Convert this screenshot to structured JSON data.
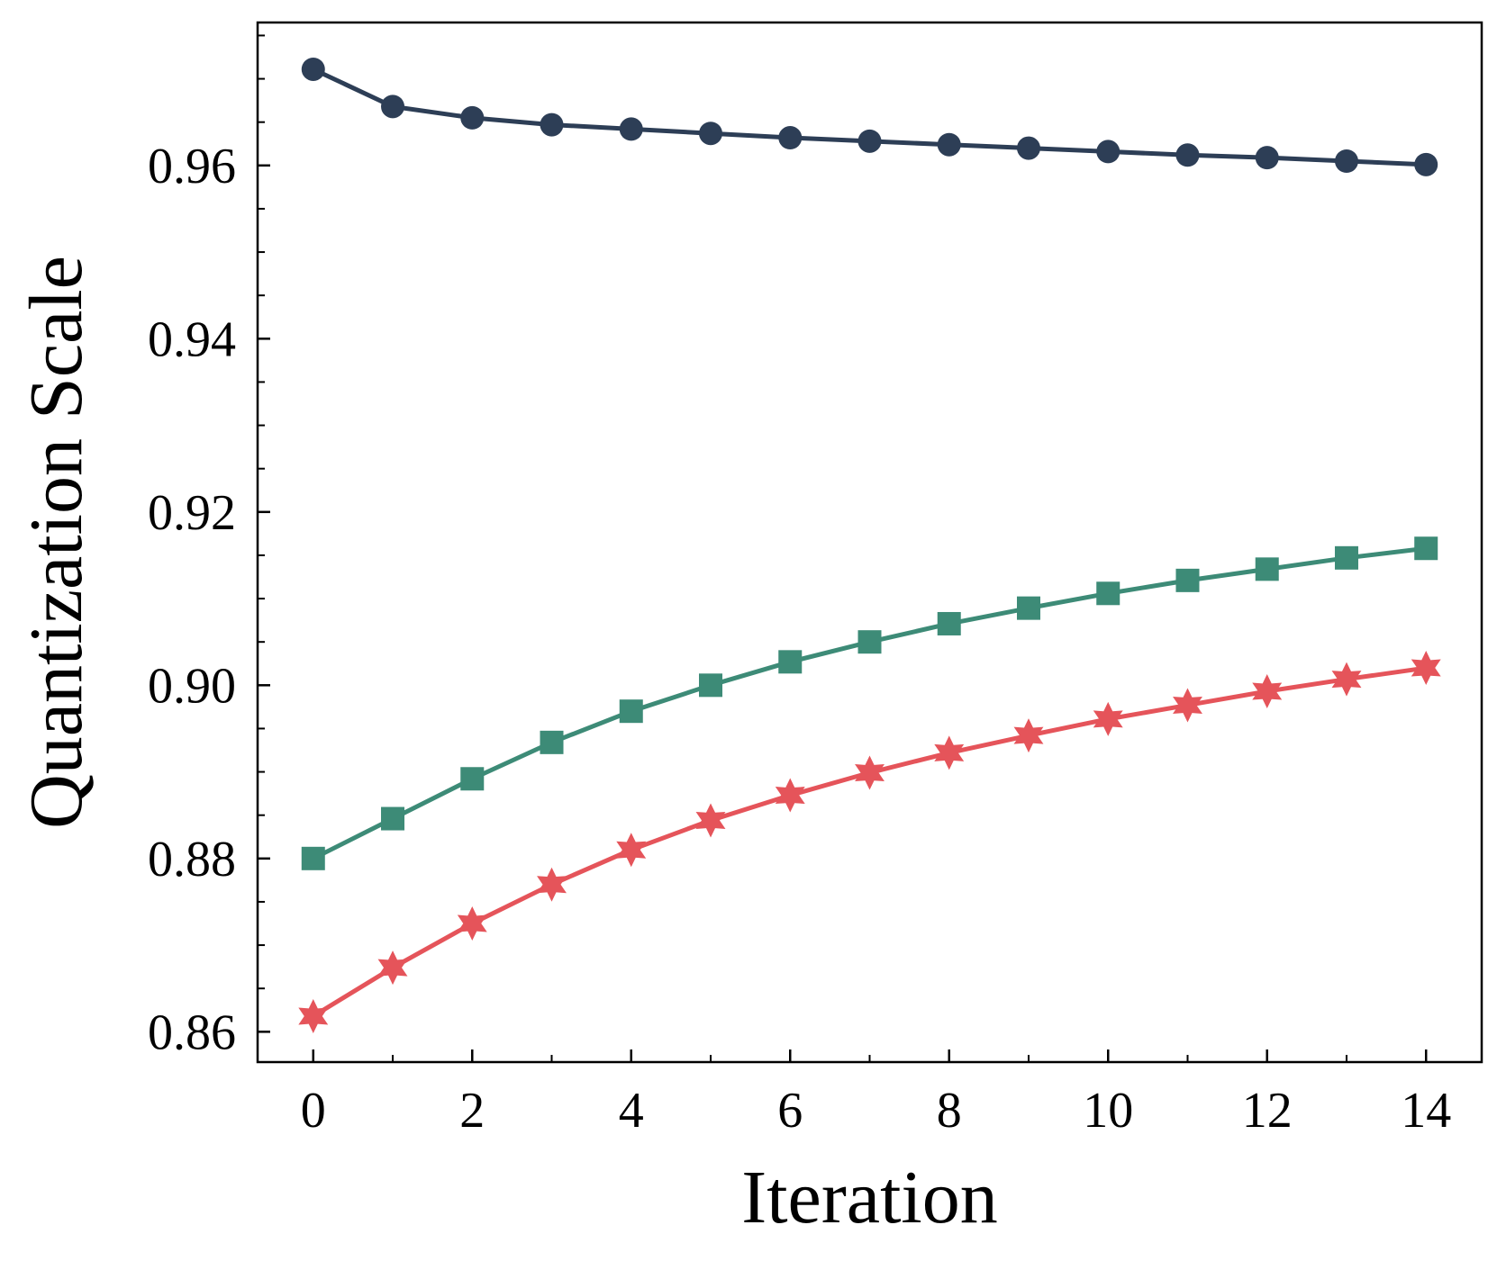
{
  "chart_data": {
    "type": "line",
    "title": "",
    "xlabel": "Iteration",
    "ylabel": "Quantization Scale",
    "xlim": [
      -0.7,
      14.7
    ],
    "ylim": [
      0.8565,
      0.9765
    ],
    "x": [
      0,
      1,
      2,
      3,
      4,
      5,
      6,
      7,
      8,
      9,
      10,
      11,
      12,
      13,
      14
    ],
    "x_ticks": [
      0,
      2,
      4,
      6,
      8,
      10,
      12,
      14
    ],
    "x_tick_labels": [
      "0",
      "2",
      "4",
      "6",
      "8",
      "10",
      "12",
      "14"
    ],
    "x_minor_ticks": [
      1,
      3,
      5,
      7,
      9,
      11,
      13
    ],
    "y_ticks": [
      0.86,
      0.88,
      0.9,
      0.92,
      0.94,
      0.96
    ],
    "y_tick_labels": [
      "0.86",
      "0.88",
      "0.90",
      "0.92",
      "0.94",
      "0.96"
    ],
    "y_minor_ticks": [
      0.865,
      0.87,
      0.875,
      0.885,
      0.89,
      0.895,
      0.905,
      0.91,
      0.915,
      0.925,
      0.93,
      0.935,
      0.945,
      0.95,
      0.955,
      0.965,
      0.97,
      0.975
    ],
    "grid": false,
    "legend": "none",
    "series": [
      {
        "name": "circle-series",
        "marker": "circle",
        "color": "#2d3e56",
        "values": [
          0.9711,
          0.9668,
          0.9655,
          0.9647,
          0.9642,
          0.9637,
          0.9632,
          0.9628,
          0.9624,
          0.962,
          0.9616,
          0.9612,
          0.9609,
          0.9605,
          0.9601
        ]
      },
      {
        "name": "square-series",
        "marker": "square",
        "color": "#3d8b77",
        "values": [
          0.88,
          0.8846,
          0.8892,
          0.8934,
          0.897,
          0.9,
          0.9027,
          0.905,
          0.9071,
          0.9089,
          0.9106,
          0.9121,
          0.9134,
          0.9147,
          0.9158
        ]
      },
      {
        "name": "star-series",
        "marker": "star",
        "color": "#e5545a",
        "values": [
          0.8618,
          0.8674,
          0.8725,
          0.877,
          0.881,
          0.8844,
          0.8873,
          0.8899,
          0.8922,
          0.8942,
          0.8961,
          0.8977,
          0.8993,
          0.9007,
          0.902
        ]
      }
    ]
  }
}
